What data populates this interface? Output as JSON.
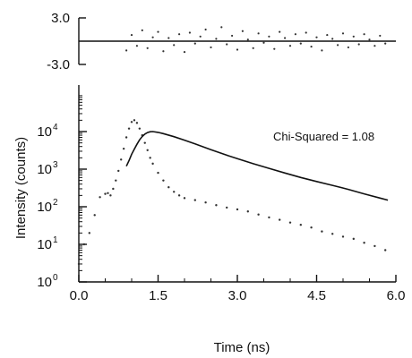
{
  "chart_data": [
    {
      "id": "residuals",
      "type": "scatter",
      "title": "",
      "xlabel": "",
      "ylabel": "",
      "xlim": [
        0.0,
        6.0
      ],
      "ylim": [
        -3.0,
        3.0
      ],
      "yticks": [
        "3.0",
        "-3.0"
      ],
      "ytick_values": [
        3.0,
        -3.0
      ],
      "grid": false,
      "baseline": 0,
      "series": [
        {
          "x": [
            0.9,
            1.0,
            1.1,
            1.2,
            1.3,
            1.4,
            1.5,
            1.6,
            1.7,
            1.8,
            1.9,
            2.0,
            2.1,
            2.2,
            2.3,
            2.4,
            2.5,
            2.6,
            2.7,
            2.8,
            2.9,
            3.0,
            3.1,
            3.2,
            3.3,
            3.4,
            3.5,
            3.6,
            3.7,
            3.8,
            3.9,
            4.0,
            4.1,
            4.2,
            4.3,
            4.4,
            4.5,
            4.6,
            4.7,
            4.8,
            4.9,
            5.0,
            5.1,
            5.2,
            5.3,
            5.4,
            5.5,
            5.6,
            5.7,
            5.8
          ],
          "y": [
            -1.2,
            0.8,
            -0.6,
            1.4,
            -0.9,
            0.5,
            1.2,
            -1.3,
            0.4,
            -0.5,
            0.9,
            -1.4,
            1.1,
            -0.3,
            0.6,
            1.5,
            -0.8,
            0.3,
            1.8,
            -0.4,
            0.7,
            -1.1,
            1.3,
            0.2,
            -0.9,
            1.0,
            -0.2,
            0.6,
            -1.0,
            1.2,
            0.4,
            -0.6,
            0.9,
            -0.3,
            1.1,
            -0.7,
            0.5,
            -1.2,
            0.8,
            0.3,
            -0.5,
            1.0,
            -0.8,
            0.6,
            -0.4,
            0.9,
            0.2,
            -0.6,
            0.7,
            -0.3
          ]
        }
      ]
    },
    {
      "id": "decay",
      "type": "line",
      "title": "",
      "xlabel": "Time (ns)",
      "ylabel": "Intensity (counts)",
      "xlim": [
        0.0,
        6.0
      ],
      "ylim": [
        1,
        100000
      ],
      "yscale": "log",
      "grid": false,
      "xticks": [
        "0.0",
        "1.5",
        "3.0",
        "4.5",
        "6.0"
      ],
      "xtick_values": [
        0.0,
        1.5,
        3.0,
        4.5,
        6.0
      ],
      "yticks": [
        {
          "base": "10",
          "exp": "0",
          "value": 1
        },
        {
          "base": "10",
          "exp": "1",
          "value": 10
        },
        {
          "base": "10",
          "exp": "2",
          "value": 100
        },
        {
          "base": "10",
          "exp": "3",
          "value": 1000
        },
        {
          "base": "10",
          "exp": "4",
          "value": 10000
        }
      ],
      "annotation": "Chi-Squared = 1.08",
      "series": [
        {
          "style": "dots",
          "x": [
            0.0,
            0.1,
            0.2,
            0.3,
            0.4,
            0.5,
            0.55,
            0.6,
            0.65,
            0.7,
            0.75,
            0.8,
            0.85,
            0.9,
            0.95,
            1.0,
            1.05,
            1.1,
            1.15,
            1.2,
            1.25,
            1.3,
            1.35,
            1.4,
            1.5,
            1.6,
            1.7,
            1.8,
            1.9,
            2.0,
            2.2,
            2.4,
            2.6,
            2.8,
            3.0,
            3.2,
            3.4,
            3.6,
            3.8,
            4.0,
            4.2,
            4.4,
            4.6,
            4.8,
            5.0,
            5.2,
            5.4,
            5.6,
            5.8
          ],
          "y": [
            3,
            10,
            20,
            60,
            180,
            220,
            230,
            200,
            300,
            500,
            900,
            1800,
            3500,
            7000,
            12000,
            18000,
            20000,
            17000,
            12000,
            8000,
            5000,
            3200,
            2000,
            1400,
            800,
            500,
            330,
            250,
            200,
            170,
            150,
            130,
            110,
            95,
            85,
            75,
            62,
            52,
            45,
            38,
            33,
            28,
            22,
            19,
            16,
            14,
            11,
            9,
            7
          ]
        },
        {
          "style": "line",
          "x": [
            0.9,
            0.95,
            1.0,
            1.05,
            1.1,
            1.15,
            1.2,
            1.25,
            1.3,
            1.35,
            1.4,
            1.5,
            1.6,
            1.8,
            2.0,
            2.2,
            2.5,
            2.8,
            3.0,
            3.3,
            3.6,
            3.9,
            4.2,
            4.5,
            4.8,
            5.1,
            5.4,
            5.7,
            5.85
          ],
          "y": [
            1200,
            1700,
            2500,
            3400,
            4600,
            6000,
            7400,
            8600,
            9400,
            9900,
            10000,
            9500,
            8800,
            7300,
            5900,
            4700,
            3300,
            2350,
            1900,
            1400,
            1050,
            790,
            600,
            470,
            370,
            290,
            220,
            170,
            150
          ]
        }
      ]
    }
  ]
}
